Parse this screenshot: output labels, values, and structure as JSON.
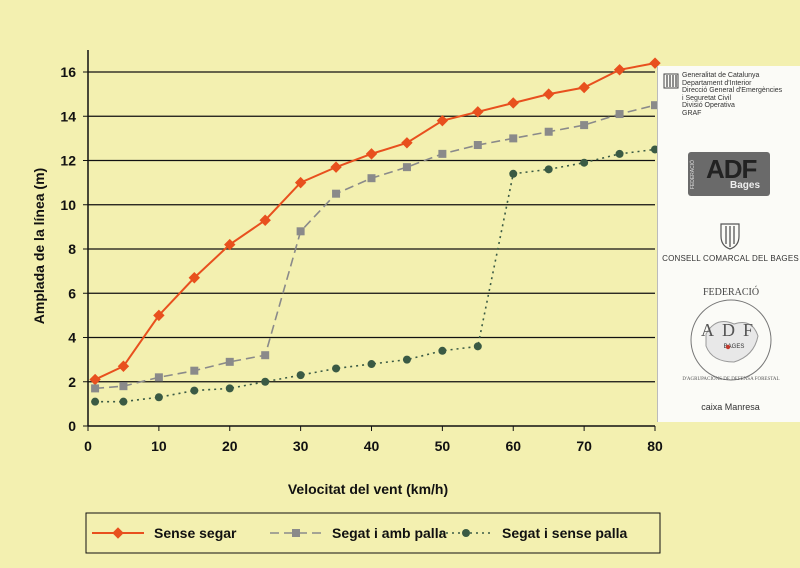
{
  "chart_data": {
    "type": "line",
    "xlabel": "Velocitat del vent (km/h)",
    "ylabel": "Amplada de la línea (m)",
    "xlim": [
      0,
      80
    ],
    "ylim": [
      0,
      17
    ],
    "x_ticks": [
      "0",
      "10",
      "20",
      "30",
      "40",
      "50",
      "60",
      "70",
      "80"
    ],
    "y_ticks": [
      "0",
      "2",
      "4",
      "6",
      "8",
      "10",
      "12",
      "14",
      "16"
    ],
    "grid": "horizontal",
    "legend_position": "bottom",
    "series": [
      {
        "name": "Sense segar",
        "color": "#e8501e",
        "style": "solid",
        "marker": "diamond",
        "x": [
          1,
          5,
          10,
          15,
          20,
          25,
          30,
          35,
          40,
          45,
          50,
          55,
          60,
          65,
          70,
          75,
          80
        ],
        "y": [
          2.1,
          2.7,
          5.0,
          6.7,
          8.2,
          9.3,
          11.0,
          11.7,
          12.3,
          12.8,
          13.8,
          14.2,
          14.6,
          15.0,
          15.3,
          16.1,
          16.4
        ]
      },
      {
        "name": "Segat i amb palla",
        "color": "#8a8a8a",
        "style": "dashed",
        "marker": "square",
        "x": [
          1,
          5,
          10,
          15,
          20,
          25,
          30,
          35,
          40,
          45,
          50,
          55,
          60,
          65,
          70,
          75,
          80
        ],
        "y": [
          1.7,
          1.8,
          2.2,
          2.5,
          2.9,
          3.2,
          8.8,
          10.5,
          11.2,
          11.7,
          12.3,
          12.7,
          13.0,
          13.3,
          13.6,
          14.1,
          14.5
        ]
      },
      {
        "name": "Segat i sense palla",
        "color": "#3a5a44",
        "style": "dotted",
        "marker": "circle",
        "x": [
          1,
          5,
          10,
          15,
          20,
          25,
          30,
          35,
          40,
          45,
          50,
          55,
          60,
          65,
          70,
          75,
          80
        ],
        "y": [
          1.1,
          1.1,
          1.3,
          1.6,
          1.7,
          2.0,
          2.3,
          2.6,
          2.8,
          3.0,
          3.4,
          3.6,
          11.4,
          11.6,
          11.9,
          12.3,
          12.5
        ]
      }
    ]
  },
  "logos": {
    "gencat_lines": [
      "Generalitat de Catalunya",
      "Departament d'Interior",
      "Direcció General d'Emergències",
      "i Seguretat Civil",
      "Divisió Operativa",
      "GRAF"
    ],
    "adf_main": "ADF",
    "adf_sub": "Bages",
    "adf_side": "FEDERACIÓ",
    "consell": "CONSELL COMARCAL DEL BAGES",
    "federacio_top": "FEDERACIÓ",
    "federacio_adf": "ADF",
    "federacio_region": "BAGES",
    "federacio_ring": "D'AGRUPACIONS DE DEFENSA FORESTAL",
    "caixa": "caixa Manresa"
  }
}
